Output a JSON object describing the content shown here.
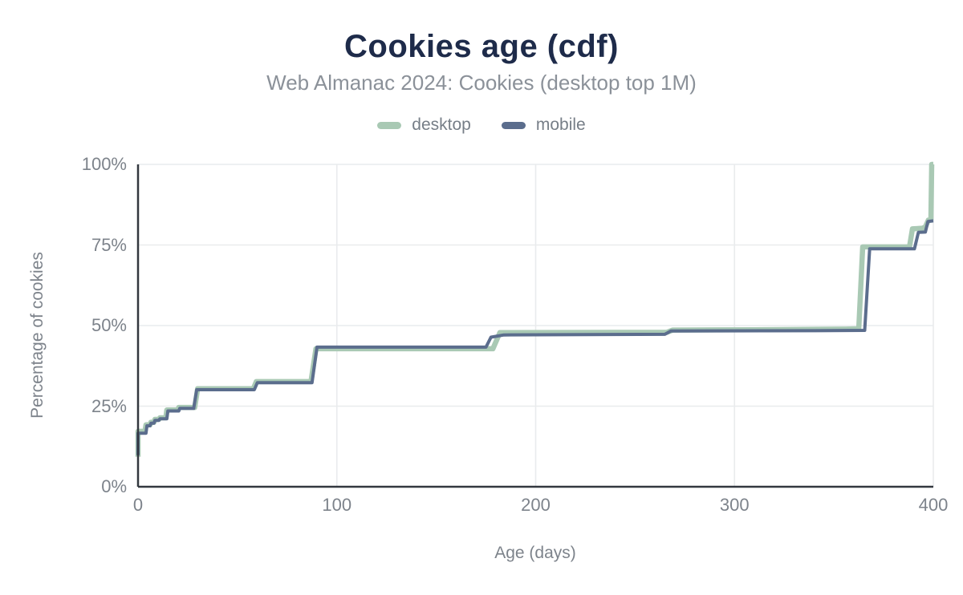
{
  "header": {
    "title": "Cookies age (cdf)",
    "subtitle": "Web Almanac 2024: Cookies (desktop top 1M)"
  },
  "colors": {
    "title": "#1e2b4a",
    "subtitle": "#8b9199",
    "tick_text": "#7d838b",
    "grid": "#e9ebed",
    "axis": "#33383f",
    "desktop": "#a9c9b4",
    "mobile": "#5b6d8d",
    "background": "#ffffff"
  },
  "chart_data": {
    "type": "line",
    "title": "Cookies age (cdf)",
    "subtitle": "Web Almanac 2024: Cookies (desktop top 1M)",
    "xlabel": "Age (days)",
    "ylabel": "Percentage of cookies",
    "xlim": [
      0,
      400
    ],
    "ylim": [
      0,
      100
    ],
    "x_ticks": [
      0,
      100,
      200,
      300,
      400
    ],
    "x_tick_labels": [
      "0",
      "100",
      "200",
      "300",
      "400"
    ],
    "y_ticks": [
      0,
      25,
      50,
      75,
      100
    ],
    "y_tick_labels": [
      "0%",
      "25%",
      "50%",
      "75%",
      "100%"
    ],
    "grid": true,
    "legend_position": "top",
    "series": [
      {
        "name": "desktop",
        "color": "#a9c9b4",
        "stroke_width": 6.5,
        "points": [
          [
            0,
            9.3
          ],
          [
            0,
            17.2
          ],
          [
            3.5,
            17.2
          ],
          [
            4,
            19.2
          ],
          [
            6,
            19.2
          ],
          [
            6.5,
            20
          ],
          [
            8,
            20
          ],
          [
            8.5,
            20.9
          ],
          [
            10.5,
            20.9
          ],
          [
            11,
            21.4
          ],
          [
            14,
            21.4
          ],
          [
            14.5,
            23.8
          ],
          [
            20,
            23.8
          ],
          [
            20.5,
            24.6
          ],
          [
            28.5,
            24.6
          ],
          [
            30,
            30.4
          ],
          [
            58,
            30.4
          ],
          [
            59.5,
            32.6
          ],
          [
            87,
            32.6
          ],
          [
            89.5,
            42.8
          ],
          [
            178.5,
            42.8
          ],
          [
            182,
            47.8
          ],
          [
            266,
            47.9
          ],
          [
            269,
            48.6
          ],
          [
            310,
            48.7
          ],
          [
            356,
            48.9
          ],
          [
            362.5,
            49
          ],
          [
            364.5,
            74.4
          ],
          [
            388,
            74.4
          ],
          [
            389.5,
            80
          ],
          [
            394.5,
            80.2
          ],
          [
            396,
            80.6
          ],
          [
            397.5,
            82.7
          ],
          [
            398.8,
            82.7
          ],
          [
            399.2,
            100
          ],
          [
            400,
            100
          ]
        ]
      },
      {
        "name": "mobile",
        "color": "#5b6d8d",
        "stroke_width": 4,
        "points": [
          [
            0,
            9.8
          ],
          [
            0,
            16.6
          ],
          [
            4,
            16.6
          ],
          [
            4.5,
            18.9
          ],
          [
            6,
            18.9
          ],
          [
            6.5,
            19.7
          ],
          [
            8,
            19.7
          ],
          [
            8.5,
            20.6
          ],
          [
            10.5,
            20.6
          ],
          [
            11,
            21.1
          ],
          [
            14.5,
            21.1
          ],
          [
            15,
            23.5
          ],
          [
            20.5,
            23.5
          ],
          [
            21,
            24.3
          ],
          [
            28,
            24.3
          ],
          [
            29.5,
            30.1
          ],
          [
            58.5,
            30.1
          ],
          [
            60,
            32.3
          ],
          [
            87.5,
            32.3
          ],
          [
            90,
            43.3
          ],
          [
            175,
            43.3
          ],
          [
            177.5,
            46.4
          ],
          [
            184,
            47.1
          ],
          [
            265,
            47.3
          ],
          [
            268,
            48.3
          ],
          [
            340,
            48.4
          ],
          [
            365.5,
            48.5
          ],
          [
            368,
            73.8
          ],
          [
            390.5,
            73.8
          ],
          [
            392.5,
            78.9
          ],
          [
            396,
            79
          ],
          [
            397.3,
            82.3
          ],
          [
            400,
            82.5
          ]
        ]
      }
    ]
  }
}
